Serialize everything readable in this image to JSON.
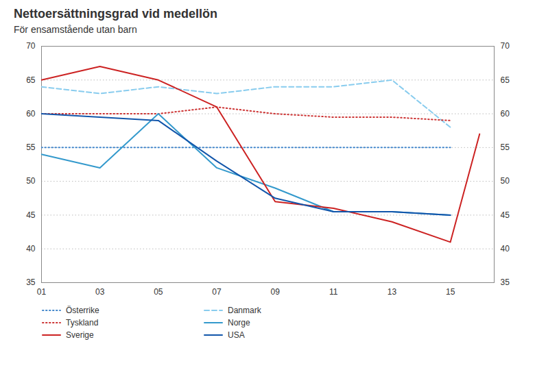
{
  "chart_data": {
    "type": "line",
    "title": "Nettoersättningsgrad vid medellön",
    "subtitle": "För ensamstående utan barn",
    "x": [
      2001,
      2003,
      2005,
      2007,
      2009,
      2011,
      2013,
      2015,
      2016
    ],
    "series": [
      {
        "name": "Österrike",
        "color": "#4488cc",
        "line_style": "dotted",
        "values": [
          55,
          55,
          55,
          55,
          55,
          55,
          55,
          55,
          null
        ]
      },
      {
        "name": "Danmark",
        "color": "#88ccee",
        "line_style": "dashed",
        "values": [
          64,
          63,
          64,
          63,
          64,
          64,
          65,
          58,
          null
        ]
      },
      {
        "name": "Tyskland",
        "color": "#cc3333",
        "line_style": "dotted",
        "values": [
          60,
          60,
          60,
          61,
          60,
          59.5,
          59.5,
          59,
          null
        ]
      },
      {
        "name": "Norge",
        "color": "#3399cc",
        "line_style": "solid",
        "values": [
          54,
          52,
          60,
          52,
          49,
          45.5,
          45.5,
          45,
          null
        ]
      },
      {
        "name": "Sverige",
        "color": "#cc2222",
        "line_style": "solid",
        "values": [
          65,
          67,
          65,
          61,
          47,
          46,
          44,
          41,
          57
        ]
      },
      {
        "name": "USA",
        "color": "#1155aa",
        "line_style": "solid",
        "values": [
          60,
          59.5,
          59,
          53,
          47.5,
          45.5,
          45.5,
          45,
          null
        ]
      }
    ],
    "xlim": [
      2001,
      2016.5
    ],
    "xticks": [
      {
        "value": 2001,
        "label": "01"
      },
      {
        "value": 2003,
        "label": "03"
      },
      {
        "value": 2005,
        "label": "05"
      },
      {
        "value": 2007,
        "label": "07"
      },
      {
        "value": 2009,
        "label": "09"
      },
      {
        "value": 2011,
        "label": "11"
      },
      {
        "value": 2013,
        "label": "13"
      },
      {
        "value": 2015,
        "label": "15"
      }
    ],
    "ylim": [
      35,
      70
    ],
    "yticks": [
      35,
      40,
      45,
      50,
      55,
      60,
      65,
      70
    ],
    "y2lim": [
      35,
      70
    ],
    "y2ticks": [
      35,
      40,
      45,
      50,
      55,
      60,
      65,
      70
    ],
    "grid": true,
    "legend": "bottom"
  }
}
